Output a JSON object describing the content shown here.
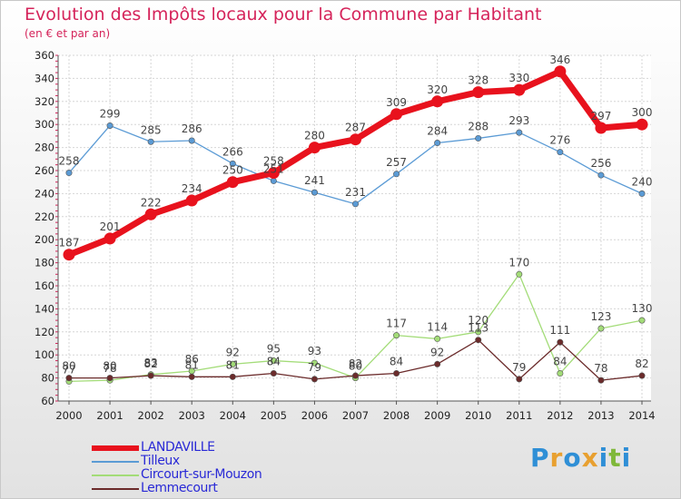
{
  "title": "Evolution des Impôts locaux pour la Commune par Habitant",
  "subtitle": "(en € et par an)",
  "logo": {
    "letters": [
      "P",
      "r",
      "o",
      "x",
      "i",
      "t",
      "i"
    ],
    "colors": [
      "#2f8fd6",
      "#e8a030",
      "#2f8fd6",
      "#e8a030",
      "#2f8fd6",
      "#7fb83a",
      "#2f8fd6"
    ]
  },
  "colors": {
    "title": "#d5235a",
    "legend_text": "#2929d6"
  },
  "chart_data": {
    "type": "line",
    "x": [
      "2000",
      "2001",
      "2002",
      "2003",
      "2004",
      "2005",
      "2006",
      "2007",
      "2008",
      "2009",
      "2010",
      "2011",
      "2012",
      "2013",
      "2014"
    ],
    "ylim": [
      60,
      360
    ],
    "yticks": [
      60,
      80,
      100,
      120,
      140,
      160,
      180,
      200,
      220,
      240,
      260,
      280,
      300,
      320,
      340,
      360
    ],
    "grid": true,
    "legend_position": "bottom-left",
    "series": [
      {
        "name": "LANDAVILLE",
        "color": "#e8121d",
        "values": [
          187,
          201,
          222,
          234,
          250,
          258,
          280,
          287,
          309,
          320,
          328,
          330,
          346,
          297,
          300
        ],
        "labels": [
          "187",
          "201",
          "222",
          "234",
          "250",
          "258",
          "280",
          "287",
          "309",
          "320",
          "328",
          "330",
          "346",
          "297",
          "300"
        ]
      },
      {
        "name": "Tilleux",
        "color": "#5b9bd5",
        "values": [
          258,
          299,
          285,
          286,
          266,
          251,
          241,
          231,
          257,
          284,
          288,
          293,
          276,
          256,
          240
        ],
        "labels": [
          "258",
          "299",
          "285",
          "286",
          "266",
          "251",
          "241",
          "231",
          "257",
          "284",
          "288",
          "293",
          "276",
          "256",
          "240"
        ]
      },
      {
        "name": "Circourt-sur-Mouzon",
        "color": "#a3dc78",
        "values": [
          77,
          78,
          83,
          86,
          92,
          95,
          93,
          80,
          117,
          114,
          120,
          170,
          84,
          123,
          130
        ],
        "labels": [
          "77",
          "78",
          "83",
          "86",
          "92",
          "95",
          "93",
          "80",
          "117",
          "114",
          "120",
          "170",
          "84",
          "123",
          "130"
        ]
      },
      {
        "name": "Lemmecourt",
        "color": "#6b2b2b",
        "values": [
          80,
          80,
          82,
          81,
          81,
          84,
          79,
          82,
          84,
          92,
          113,
          79,
          111,
          78,
          82
        ],
        "labels": [
          "80",
          "80",
          "82",
          "81",
          "81",
          "84",
          "79",
          "82",
          "84",
          "92",
          "113",
          "79",
          "111",
          "78",
          "82"
        ]
      }
    ]
  }
}
